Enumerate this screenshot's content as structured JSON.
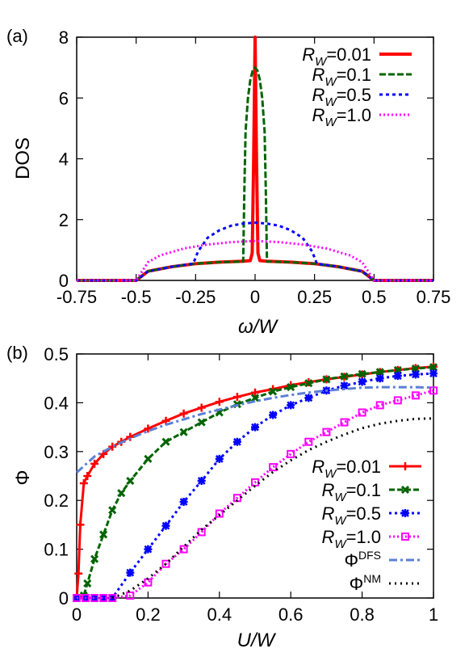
{
  "chart_data": [
    {
      "panel_label": "(a)",
      "type": "line",
      "xlabel": "ω/W",
      "ylabel": "DOS",
      "xlim": [
        -0.75,
        0.75
      ],
      "ylim": [
        0,
        8
      ],
      "xticks": [
        "-0.75",
        "-0.5",
        "-0.25",
        "0",
        "0.25",
        "0.5",
        "0.75"
      ],
      "xtick_values": [
        -0.75,
        -0.5,
        -0.25,
        0,
        0.25,
        0.5,
        0.75
      ],
      "yticks": [
        "0",
        "2",
        "4",
        "6",
        "8"
      ],
      "ytick_values": [
        0,
        2,
        4,
        6,
        8
      ],
      "legend_position": "top-right",
      "series": [
        {
          "name_base": "R",
          "name_sub": "W",
          "name_val": "=0.01",
          "color": "#ff0000",
          "dash": "",
          "width": 4,
          "x": [
            -0.75,
            -0.5,
            -0.45,
            -0.35,
            -0.25,
            -0.15,
            -0.05,
            -0.02,
            -0.012,
            -0.006,
            0.0,
            0.006,
            0.012,
            0.02,
            0.05,
            0.15,
            0.25,
            0.35,
            0.45,
            0.5,
            0.75
          ],
          "y": [
            0,
            0,
            0.3,
            0.45,
            0.55,
            0.6,
            0.63,
            0.65,
            0.9,
            4.0,
            8.0,
            4.0,
            0.9,
            0.65,
            0.63,
            0.6,
            0.55,
            0.45,
            0.3,
            0,
            0
          ]
        },
        {
          "name_base": "R",
          "name_sub": "W",
          "name_val": "=0.1",
          "color": "#006400",
          "dash": "8,3",
          "width": 3,
          "x": [
            -0.75,
            -0.5,
            -0.45,
            -0.35,
            -0.25,
            -0.15,
            -0.06,
            -0.05,
            -0.045,
            -0.04,
            -0.03,
            -0.02,
            -0.01,
            0.0,
            0.01,
            0.02,
            0.03,
            0.04,
            0.045,
            0.05,
            0.06,
            0.15,
            0.25,
            0.35,
            0.45,
            0.5,
            0.75
          ],
          "y": [
            0,
            0,
            0.3,
            0.45,
            0.55,
            0.6,
            0.62,
            0.62,
            3.0,
            4.9,
            6.0,
            6.6,
            6.9,
            7.0,
            6.9,
            6.6,
            6.0,
            4.9,
            3.0,
            0.62,
            0.62,
            0.6,
            0.55,
            0.45,
            0.3,
            0,
            0
          ]
        },
        {
          "name_base": "R",
          "name_sub": "W",
          "name_val": "=0.5",
          "color": "#0000ff",
          "dash": "4,4",
          "width": 3,
          "x": [
            -0.75,
            -0.5,
            -0.45,
            -0.35,
            -0.26,
            -0.24,
            -0.2,
            -0.15,
            -0.1,
            -0.05,
            0.0,
            0.05,
            0.1,
            0.15,
            0.2,
            0.24,
            0.26,
            0.35,
            0.45,
            0.5,
            0.75
          ],
          "y": [
            0,
            0,
            0.3,
            0.45,
            0.55,
            0.95,
            1.4,
            1.65,
            1.8,
            1.87,
            1.9,
            1.87,
            1.8,
            1.65,
            1.4,
            0.95,
            0.55,
            0.45,
            0.3,
            0,
            0
          ]
        },
        {
          "name_base": "R",
          "name_sub": "W",
          "name_val": "=1.0",
          "color": "#ff00ff",
          "dash": "2,3",
          "width": 3,
          "x": [
            -0.75,
            -0.5,
            -0.45,
            -0.4,
            -0.3,
            -0.2,
            -0.1,
            0.0,
            0.1,
            0.2,
            0.3,
            0.4,
            0.45,
            0.5,
            0.75
          ],
          "y": [
            0,
            0,
            0.6,
            0.82,
            1.05,
            1.18,
            1.26,
            1.3,
            1.26,
            1.18,
            1.05,
            0.82,
            0.6,
            0,
            0
          ]
        }
      ]
    },
    {
      "panel_label": "(b)",
      "type": "line",
      "xlabel": "U/W",
      "ylabel": "Φ",
      "xlim": [
        0,
        1
      ],
      "ylim": [
        0,
        0.5
      ],
      "xticks": [
        "0",
        "0.2",
        "0.4",
        "0.6",
        "0.8",
        "1"
      ],
      "xtick_values": [
        0,
        0.2,
        0.4,
        0.6,
        0.8,
        1.0
      ],
      "yticks": [
        "0",
        "0.1",
        "0.2",
        "0.3",
        "0.4",
        "0.5"
      ],
      "ytick_values": [
        0,
        0.1,
        0.2,
        0.3,
        0.4,
        0.5
      ],
      "legend_position": "bottom-right",
      "series": [
        {
          "name_base": "R",
          "name_sub": "W",
          "name_val": "=0.01",
          "color": "#ff0000",
          "dash": "",
          "width": 3,
          "marker": "plus",
          "x": [
            0.0,
            0.005,
            0.01,
            0.02,
            0.03,
            0.05,
            0.075,
            0.1,
            0.125,
            0.15,
            0.2,
            0.25,
            0.3,
            0.35,
            0.4,
            0.45,
            0.5,
            0.55,
            0.6,
            0.65,
            0.7,
            0.75,
            0.8,
            0.85,
            0.9,
            0.95,
            1.0
          ],
          "y": [
            0.0,
            0.05,
            0.15,
            0.235,
            0.25,
            0.275,
            0.295,
            0.31,
            0.32,
            0.33,
            0.347,
            0.363,
            0.378,
            0.39,
            0.402,
            0.412,
            0.421,
            0.428,
            0.436,
            0.442,
            0.448,
            0.453,
            0.458,
            0.463,
            0.467,
            0.471,
            0.474
          ]
        },
        {
          "name_base": "R",
          "name_sub": "W",
          "name_val": "=0.1",
          "color": "#006400",
          "dash": "7,3",
          "width": 3,
          "marker": "cross",
          "x": [
            0.0,
            0.02,
            0.03,
            0.05,
            0.075,
            0.1,
            0.125,
            0.15,
            0.2,
            0.25,
            0.3,
            0.35,
            0.4,
            0.45,
            0.5,
            0.55,
            0.6,
            0.65,
            0.7,
            0.75,
            0.8,
            0.85,
            0.9,
            0.95,
            1.0
          ],
          "y": [
            0.0,
            0.005,
            0.03,
            0.08,
            0.13,
            0.18,
            0.215,
            0.24,
            0.285,
            0.32,
            0.34,
            0.36,
            0.38,
            0.397,
            0.41,
            0.423,
            0.432,
            0.44,
            0.448,
            0.454,
            0.459,
            0.463,
            0.467,
            0.47,
            0.473
          ]
        },
        {
          "name_base": "R",
          "name_sub": "W",
          "name_val": "=0.5",
          "color": "#0000ff",
          "dash": "3,4",
          "width": 3,
          "marker": "star",
          "x": [
            0.0,
            0.025,
            0.05,
            0.075,
            0.1,
            0.15,
            0.2,
            0.25,
            0.3,
            0.35,
            0.4,
            0.45,
            0.5,
            0.55,
            0.6,
            0.65,
            0.7,
            0.75,
            0.8,
            0.85,
            0.9,
            0.95,
            1.0
          ],
          "y": [
            0.0,
            0.0,
            0.0,
            0.0,
            0.0,
            0.052,
            0.1,
            0.148,
            0.197,
            0.24,
            0.285,
            0.32,
            0.35,
            0.375,
            0.395,
            0.41,
            0.425,
            0.435,
            0.443,
            0.45,
            0.455,
            0.458,
            0.46
          ]
        },
        {
          "name_base": "R",
          "name_sub": "W",
          "name_val": "=1.0",
          "color": "#ff00ff",
          "dash": "2,3",
          "width": 3,
          "marker": "square",
          "x": [
            0.0,
            0.025,
            0.05,
            0.075,
            0.1,
            0.15,
            0.2,
            0.25,
            0.3,
            0.35,
            0.4,
            0.45,
            0.5,
            0.55,
            0.6,
            0.65,
            0.7,
            0.75,
            0.8,
            0.85,
            0.9,
            0.95,
            1.0
          ],
          "y": [
            0.0,
            0.0,
            0.0,
            0.0,
            0.0,
            0.005,
            0.032,
            0.07,
            0.1,
            0.135,
            0.173,
            0.205,
            0.237,
            0.268,
            0.295,
            0.32,
            0.34,
            0.36,
            0.38,
            0.395,
            0.405,
            0.415,
            0.425
          ]
        },
        {
          "name_base": "Φ",
          "name_sup": "DFS",
          "name_val": "",
          "color": "#5b7fd6",
          "dash": "10,4,3,4",
          "width": 3,
          "marker": "none",
          "x": [
            0.0,
            0.05,
            0.1,
            0.15,
            0.2,
            0.25,
            0.3,
            0.35,
            0.4,
            0.45,
            0.5,
            0.55,
            0.6,
            0.65,
            0.7,
            0.75,
            0.8,
            0.85,
            0.9,
            0.95,
            1.0
          ],
          "y": [
            0.257,
            0.29,
            0.31,
            0.327,
            0.342,
            0.355,
            0.366,
            0.377,
            0.386,
            0.395,
            0.403,
            0.41,
            0.416,
            0.421,
            0.425,
            0.428,
            0.431,
            0.432,
            0.432,
            0.432,
            0.431
          ]
        },
        {
          "name_base": "Φ",
          "name_sup": "NM",
          "name_val": "",
          "color": "#000000",
          "dash": "2,5",
          "width": 3,
          "marker": "none",
          "x": [
            0.1,
            0.15,
            0.2,
            0.25,
            0.3,
            0.35,
            0.4,
            0.45,
            0.5,
            0.55,
            0.6,
            0.65,
            0.7,
            0.75,
            0.8,
            0.85,
            0.9,
            0.95,
            1.0
          ],
          "y": [
            0.0,
            0.015,
            0.04,
            0.07,
            0.105,
            0.14,
            0.17,
            0.2,
            0.23,
            0.258,
            0.282,
            0.303,
            0.32,
            0.335,
            0.348,
            0.357,
            0.363,
            0.367,
            0.368
          ]
        }
      ]
    }
  ]
}
